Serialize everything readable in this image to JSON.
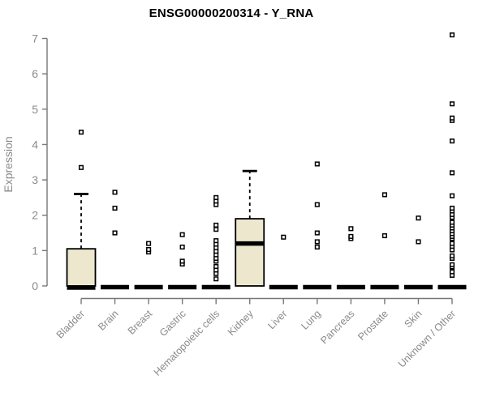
{
  "title": "ENSG00000200314 - Y_RNA",
  "chart_data": {
    "type": "boxplot",
    "title": "ENSG00000200314 - Y_RNA",
    "xlabel": "",
    "ylabel": "Expression",
    "ylim": [
      0,
      7
    ],
    "yticks": [
      0,
      1,
      2,
      3,
      4,
      5,
      6,
      7
    ],
    "grid": false,
    "legend": "none",
    "colors": {
      "box_fill": "#ece7cd",
      "box_border": "#000000",
      "median": "#000000",
      "whisker": "#000000",
      "outlier": "#000000",
      "axis": "#777777",
      "tick_label": "#8a8a8a",
      "title": "#000000",
      "background": "#ffffff"
    },
    "categories": [
      "Bladder",
      "Brain",
      "Breast",
      "Gastric",
      "Hematopoietic cells",
      "Kidney",
      "Liver",
      "Lung",
      "Pancreas",
      "Prostate",
      "Skin",
      "Unknown / Other"
    ],
    "boxes": [
      {
        "name": "Bladder",
        "q1": 0,
        "median": 0,
        "q3": 1.05,
        "whisker_low": 0,
        "whisker_high": 2.6,
        "outliers": [
          3.35,
          4.35
        ]
      },
      {
        "name": "Brain",
        "q1": 0,
        "median": 0,
        "q3": 0,
        "whisker_low": 0,
        "whisker_high": 0,
        "outliers": [
          1.5,
          2.2,
          2.65
        ]
      },
      {
        "name": "Breast",
        "q1": 0,
        "median": 0,
        "q3": 0,
        "whisker_low": 0,
        "whisker_high": 0,
        "outliers": [
          0.96,
          1.03,
          1.2
        ]
      },
      {
        "name": "Gastric",
        "q1": 0,
        "median": 0,
        "q3": 0,
        "whisker_low": 0,
        "whisker_high": 0,
        "outliers": [
          0.62,
          0.7,
          1.1,
          1.45
        ]
      },
      {
        "name": "Hematopoietic cells",
        "q1": 0,
        "median": 0,
        "q3": 0,
        "whisker_low": 0,
        "whisker_high": 0,
        "outliers": [
          0.2,
          0.35,
          0.45,
          0.55,
          0.7,
          0.78,
          0.88,
          0.98,
          1.08,
          1.18,
          1.28,
          1.6,
          1.72,
          2.3,
          2.4,
          2.5
        ]
      },
      {
        "name": "Kidney",
        "q1": 0,
        "median": 1.2,
        "q3": 1.9,
        "whisker_low": 0,
        "whisker_high": 3.25,
        "outliers": []
      },
      {
        "name": "Liver",
        "q1": 0,
        "median": 0,
        "q3": 0,
        "whisker_low": 0,
        "whisker_high": 0,
        "outliers": [
          1.38
        ]
      },
      {
        "name": "Lung",
        "q1": 0,
        "median": 0,
        "q3": 0,
        "whisker_low": 0,
        "whisker_high": 0,
        "outliers": [
          1.1,
          1.25,
          1.5,
          2.3,
          3.45
        ]
      },
      {
        "name": "Pancreas",
        "q1": 0,
        "median": 0,
        "q3": 0,
        "whisker_low": 0,
        "whisker_high": 0,
        "outliers": [
          1.34,
          1.4,
          1.62
        ]
      },
      {
        "name": "Prostate",
        "q1": 0,
        "median": 0,
        "q3": 0,
        "whisker_low": 0,
        "whisker_high": 0,
        "outliers": [
          1.42,
          2.58
        ]
      },
      {
        "name": "Skin",
        "q1": 0,
        "median": 0,
        "q3": 0,
        "whisker_low": 0,
        "whisker_high": 0,
        "outliers": [
          1.25,
          1.92
        ]
      },
      {
        "name": "Unknown / Other",
        "q1": 0,
        "median": 0,
        "q3": 0,
        "whisker_low": 0,
        "whisker_high": 0,
        "outliers": [
          0.3,
          0.4,
          0.54,
          0.6,
          0.78,
          0.85,
          1.02,
          1.12,
          1.2,
          1.34,
          1.4,
          1.48,
          1.56,
          1.64,
          1.72,
          1.8,
          1.94,
          2.02,
          2.12,
          2.2,
          2.55,
          3.2,
          4.1,
          4.68,
          4.75,
          5.15,
          7.1
        ]
      }
    ]
  }
}
